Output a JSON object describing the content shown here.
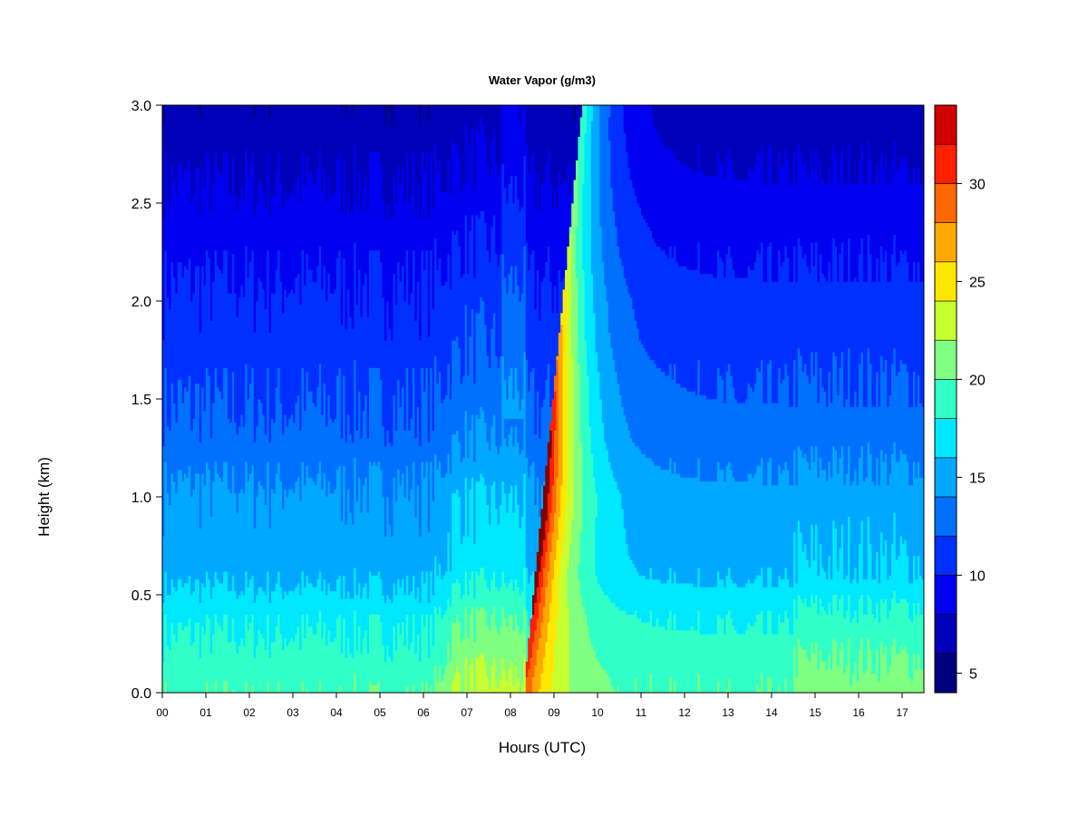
{
  "chart_data": {
    "type": "heatmap",
    "title": "Water Vapor (g/m3)",
    "xlabel": "Hours (UTC)",
    "ylabel": "Height (km)",
    "xlim": [
      0,
      17.5
    ],
    "ylim": [
      0,
      3.0
    ],
    "x_ticks": [
      {
        "value": 0,
        "label": "00"
      },
      {
        "value": 1,
        "label": "01"
      },
      {
        "value": 2,
        "label": "02"
      },
      {
        "value": 3,
        "label": "03"
      },
      {
        "value": 4,
        "label": "04"
      },
      {
        "value": 5,
        "label": "05"
      },
      {
        "value": 6,
        "label": "06"
      },
      {
        "value": 7,
        "label": "07"
      },
      {
        "value": 8,
        "label": "08"
      },
      {
        "value": 9,
        "label": "09"
      },
      {
        "value": 10,
        "label": "10"
      },
      {
        "value": 11,
        "label": "11"
      },
      {
        "value": 12,
        "label": "12"
      },
      {
        "value": 13,
        "label": "13"
      },
      {
        "value": 14,
        "label": "14"
      },
      {
        "value": 15,
        "label": "15"
      },
      {
        "value": 16,
        "label": "16"
      },
      {
        "value": 17,
        "label": "17"
      }
    ],
    "y_ticks": [
      {
        "value": 0.0,
        "label": "0.0"
      },
      {
        "value": 0.5,
        "label": "0.5"
      },
      {
        "value": 1.0,
        "label": "1.0"
      },
      {
        "value": 1.5,
        "label": "1.5"
      },
      {
        "value": 2.0,
        "label": "2.0"
      },
      {
        "value": 2.5,
        "label": "2.5"
      },
      {
        "value": 3.0,
        "label": "3.0"
      }
    ],
    "colorbar": {
      "range": [
        4,
        34
      ],
      "levels": [
        4,
        6,
        8,
        10,
        12,
        14,
        16,
        18,
        20,
        22,
        24,
        26,
        28,
        30,
        32,
        34
      ],
      "colors": [
        "#00007f",
        "#0000b8",
        "#0000f0",
        "#0030ff",
        "#0070ff",
        "#00a8ff",
        "#00e8ff",
        "#30ffc8",
        "#80ff80",
        "#c8ff30",
        "#ffe800",
        "#ffa800",
        "#ff6800",
        "#ff2000",
        "#d00000"
      ],
      "top_color": "#800000",
      "ticks": [
        {
          "value": 5,
          "label": "5"
        },
        {
          "value": 10,
          "label": "10"
        },
        {
          "value": 15,
          "label": "15"
        },
        {
          "value": 20,
          "label": "20"
        },
        {
          "value": 25,
          "label": "25"
        },
        {
          "value": 30,
          "label": "30"
        }
      ]
    },
    "field": {
      "x_step_hours": 0.05,
      "height_km": [
        0.0,
        0.1,
        0.2,
        0.3,
        0.4,
        0.5,
        0.6,
        0.7,
        0.8,
        0.9,
        1.0,
        1.1,
        1.2,
        1.3,
        1.4,
        1.5,
        1.6,
        1.7,
        1.8,
        1.9,
        2.0,
        2.1,
        2.2,
        2.3,
        2.4,
        2.5,
        2.6,
        2.7,
        2.8,
        2.9,
        3.0
      ],
      "background_profile_g_m3": [
        19.5,
        19.2,
        18.6,
        18.0,
        17.4,
        16.4,
        15.4,
        15.0,
        14.8,
        14.6,
        14.4,
        13.8,
        13.2,
        12.6,
        12.2,
        11.9,
        11.6,
        11.2,
        10.8,
        10.6,
        10.4,
        10.0,
        9.6,
        9.2,
        8.9,
        8.4,
        8.0,
        7.6,
        7.2,
        6.8,
        6.6
      ],
      "moist_episode_hours": [
        6.2,
        8.35
      ],
      "moist_episode_increase_g_m3": 3.0,
      "plume_start_hours": 8.35,
      "plume_peak_g_m3": 34,
      "plume_peak_height_km": 0.9,
      "late_moistening_hours": [
        14.5,
        17.5
      ],
      "late_moistening_increase_g_m3": 1.5
    }
  }
}
